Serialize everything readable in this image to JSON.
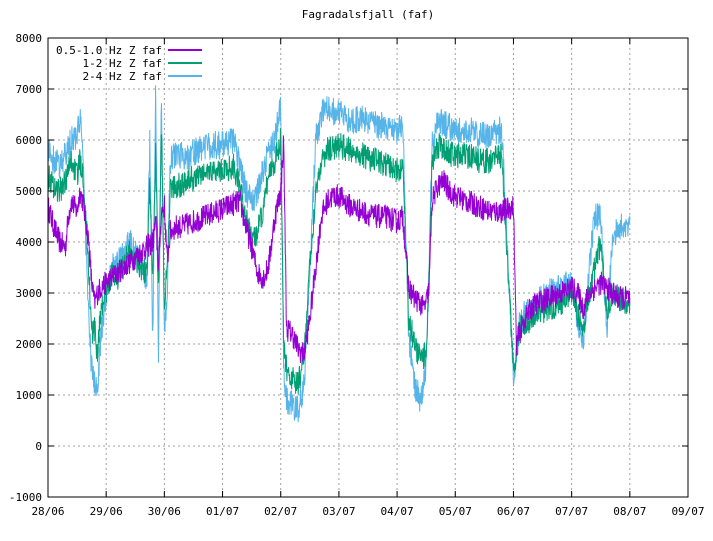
{
  "chart_data": {
    "type": "line",
    "title": "Fagradalsfjall (faf)",
    "xlabel": "",
    "ylabel": "",
    "x_ticks": [
      "28/06",
      "29/06",
      "30/06",
      "01/07",
      "02/07",
      "03/07",
      "04/07",
      "05/07",
      "06/07",
      "07/07",
      "08/07",
      "09/07"
    ],
    "y_ticks": [
      -1000,
      0,
      1000,
      2000,
      3000,
      4000,
      5000,
      6000,
      7000,
      8000
    ],
    "xlim": [
      0,
      11
    ],
    "ylim": [
      -1000,
      8000
    ],
    "grid": true,
    "legend_position": "top-left",
    "series": [
      {
        "name": "0.5-1.0 Hz Z faf",
        "color": "#9400d3",
        "x": [
          0.0,
          0.1,
          0.2,
          0.3,
          0.35,
          0.4,
          0.5,
          0.55,
          0.6,
          0.7,
          0.75,
          0.8,
          0.85,
          0.9,
          1.0,
          1.1,
          1.2,
          1.3,
          1.4,
          1.5,
          1.6,
          1.7,
          1.8,
          1.85,
          1.9,
          1.95,
          2.0,
          2.05,
          2.1,
          2.2,
          2.3,
          2.5,
          2.7,
          2.9,
          3.1,
          3.3,
          3.4,
          3.5,
          3.6,
          3.7,
          3.75,
          3.8,
          3.9,
          4.0,
          4.05,
          4.1,
          4.2,
          4.3,
          4.4,
          4.5,
          4.6,
          4.7,
          4.8,
          4.9,
          5.0,
          5.2,
          5.4,
          5.6,
          5.8,
          6.0,
          6.1,
          6.2,
          6.3,
          6.4,
          6.45,
          6.5,
          6.55,
          6.6,
          6.7,
          6.8,
          6.9,
          7.0,
          7.2,
          7.4,
          7.6,
          7.8,
          8.0,
          8.05,
          8.1,
          8.2,
          8.3,
          8.4,
          8.6,
          8.8,
          9.0,
          9.1,
          9.2,
          9.3,
          9.4,
          9.5,
          9.6,
          9.7,
          9.8,
          10.0
        ],
        "y": [
          4700,
          4300,
          4000,
          3900,
          4500,
          4800,
          4600,
          5000,
          4800,
          4000,
          3200,
          2800,
          3000,
          3100,
          3200,
          3300,
          3400,
          3500,
          3600,
          3700,
          3800,
          3900,
          4000,
          4400,
          3500,
          4600,
          4700,
          3600,
          4200,
          4300,
          4300,
          4400,
          4500,
          4600,
          4700,
          4800,
          4300,
          3900,
          3400,
          3300,
          3400,
          3600,
          4500,
          5000,
          6000,
          2300,
          2200,
          1900,
          1800,
          2500,
          3500,
          4500,
          4800,
          4900,
          4900,
          4700,
          4600,
          4500,
          4500,
          4400,
          4500,
          3100,
          2900,
          2800,
          2700,
          2800,
          3100,
          4800,
          5100,
          5200,
          5000,
          4900,
          4800,
          4700,
          4600,
          4600,
          4700,
          2000,
          2200,
          2500,
          2700,
          2800,
          2900,
          3000,
          3100,
          3000,
          2700,
          3000,
          3100,
          3200,
          3100,
          3000,
          2900,
          2900
        ]
      },
      {
        "name": "1-2 Hz Z faf",
        "color": "#009e73",
        "x": [
          0.0,
          0.1,
          0.2,
          0.3,
          0.4,
          0.5,
          0.55,
          0.6,
          0.65,
          0.7,
          0.75,
          0.8,
          0.85,
          0.9,
          1.0,
          1.1,
          1.2,
          1.3,
          1.4,
          1.5,
          1.6,
          1.7,
          1.75,
          1.8,
          1.85,
          1.9,
          1.95,
          2.0,
          2.05,
          2.1,
          2.2,
          2.4,
          2.6,
          2.8,
          3.0,
          3.2,
          3.3,
          3.4,
          3.5,
          3.6,
          3.7,
          3.8,
          3.9,
          4.0,
          4.05,
          4.1,
          4.2,
          4.3,
          4.4,
          4.5,
          4.6,
          4.7,
          4.8,
          5.0,
          5.2,
          5.4,
          5.6,
          5.8,
          6.0,
          6.1,
          6.2,
          6.3,
          6.4,
          6.5,
          6.55,
          6.6,
          6.7,
          6.8,
          7.0,
          7.2,
          7.4,
          7.6,
          7.8,
          8.0,
          8.05,
          8.1,
          8.2,
          8.4,
          8.6,
          8.8,
          9.0,
          9.1,
          9.2,
          9.3,
          9.4,
          9.5,
          9.6,
          9.7,
          9.8,
          10.0
        ],
        "y": [
          5300,
          5100,
          5000,
          5200,
          5600,
          5300,
          5600,
          5400,
          4500,
          3500,
          2200,
          2300,
          1800,
          2600,
          3000,
          3400,
          3300,
          3600,
          3800,
          3700,
          3500,
          3400,
          5200,
          3200,
          5800,
          3000,
          6200,
          2800,
          3500,
          5000,
          5100,
          5200,
          5300,
          5400,
          5400,
          5500,
          5000,
          4500,
          4000,
          4200,
          4600,
          5400,
          5600,
          6000,
          2000,
          1500,
          1300,
          1200,
          1800,
          3500,
          5000,
          5600,
          5800,
          5900,
          5800,
          5700,
          5600,
          5500,
          5400,
          5500,
          2500,
          2000,
          1700,
          1800,
          3500,
          5500,
          5900,
          5800,
          5700,
          5700,
          5600,
          5600,
          5700,
          1500,
          1800,
          2300,
          2400,
          2600,
          2700,
          2800,
          3000,
          2600,
          2200,
          3000,
          3500,
          4000,
          2600,
          3000,
          2900,
          2800
        ]
      },
      {
        "name": "2-4 Hz Z faf",
        "color": "#56b4e9",
        "x": [
          0.0,
          0.1,
          0.2,
          0.3,
          0.4,
          0.5,
          0.55,
          0.6,
          0.65,
          0.7,
          0.75,
          0.8,
          0.85,
          0.9,
          1.0,
          1.1,
          1.2,
          1.3,
          1.4,
          1.5,
          1.6,
          1.7,
          1.75,
          1.8,
          1.85,
          1.9,
          1.95,
          2.0,
          2.05,
          2.1,
          2.2,
          2.4,
          2.6,
          2.8,
          3.0,
          3.2,
          3.3,
          3.4,
          3.5,
          3.6,
          3.7,
          3.8,
          3.9,
          4.0,
          4.05,
          4.1,
          4.2,
          4.3,
          4.4,
          4.5,
          4.6,
          4.7,
          4.8,
          5.0,
          5.2,
          5.4,
          5.6,
          5.8,
          6.0,
          6.1,
          6.2,
          6.3,
          6.4,
          6.5,
          6.55,
          6.6,
          6.7,
          6.8,
          7.0,
          7.2,
          7.4,
          7.6,
          7.8,
          8.0,
          8.05,
          8.1,
          8.2,
          8.4,
          8.6,
          8.8,
          9.0,
          9.1,
          9.2,
          9.3,
          9.4,
          9.5,
          9.6,
          9.7,
          9.8,
          10.0
        ],
        "y": [
          5800,
          5600,
          5500,
          5700,
          6000,
          6100,
          6400,
          5800,
          4000,
          2500,
          1500,
          1200,
          1100,
          2000,
          3000,
          3500,
          3600,
          3800,
          4000,
          3800,
          3500,
          3300,
          6000,
          2000,
          6800,
          1800,
          6900,
          2200,
          3000,
          5600,
          5700,
          5700,
          5800,
          5900,
          5900,
          6000,
          5500,
          5000,
          4800,
          5000,
          5400,
          5800,
          6000,
          6700,
          1500,
          900,
          800,
          700,
          1200,
          3500,
          6000,
          6500,
          6600,
          6500,
          6400,
          6400,
          6300,
          6300,
          6200,
          6300,
          2100,
          1200,
          900,
          1500,
          3500,
          6000,
          6400,
          6300,
          6200,
          6200,
          6100,
          6100,
          6200,
          1400,
          1700,
          2400,
          2600,
          2800,
          3000,
          3100,
          3200,
          2500,
          2100,
          3500,
          4500,
          4500,
          2200,
          4000,
          4300,
          4400
        ]
      }
    ]
  }
}
